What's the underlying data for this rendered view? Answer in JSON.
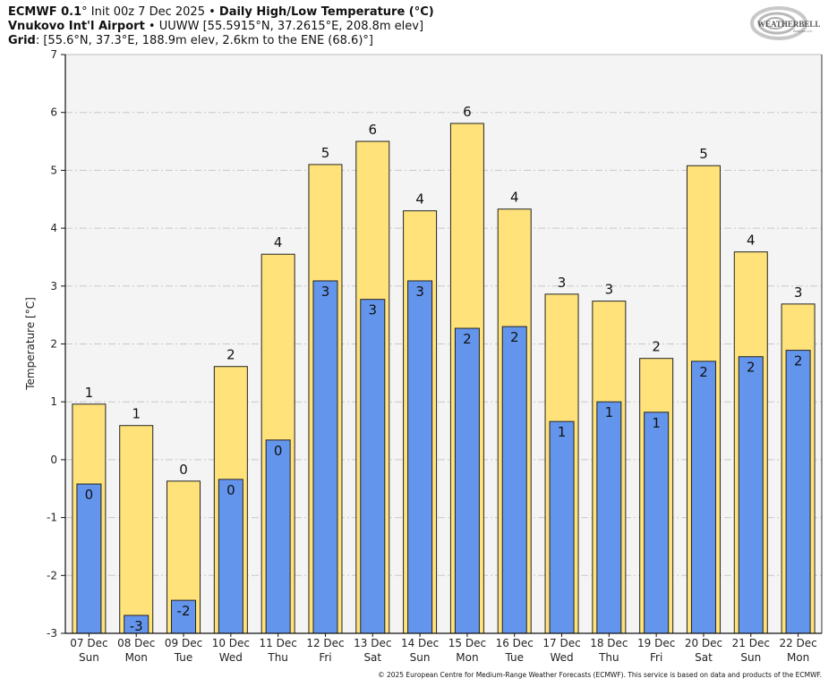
{
  "header": {
    "line1_bold_a": "ECMWF 0.1",
    "line1_deg": "°",
    "line1_text": " Init 00z 7 Dec 2025 • ",
    "line1_bold_b": "Daily High/Low Temperature (°C)",
    "line2_bold": "Vnukovo Int'l Airport",
    "line2_text": " • UUWW [55.5915°N, 37.2615°E, 208.8m elev]",
    "line3_bold": "Grid",
    "line3_text": ": [55.6°N, 37.3°E, 188.9m elev, 2.6km to the ENE (68.6)°]"
  },
  "logo": {
    "text": "WEATHERBELL",
    "subtext": "Analytics LLC",
    "icon": "swirl-logo-icon"
  },
  "footer": "© 2025 European Centre for Medium-Range Weather Forecasts (ECMWF). This service is based on data and products of the ECMWF.",
  "colors": {
    "high": "#ffe37a",
    "low": "#6495ed",
    "plot_bg": "#f4f4f4",
    "grid": "#c8c8c8"
  },
  "chart_data": {
    "type": "bar",
    "title": "Daily High/Low Temperature (°C)",
    "xlabel": "",
    "ylabel": "Temperature [°C]",
    "ylim": [
      -3,
      7
    ],
    "yticks": [
      -3,
      -2,
      -1,
      0,
      1,
      2,
      3,
      4,
      5,
      6,
      7
    ],
    "grid": true,
    "categories": [
      "07 Dec",
      "08 Dec",
      "09 Dec",
      "10 Dec",
      "11 Dec",
      "12 Dec",
      "13 Dec",
      "14 Dec",
      "15 Dec",
      "16 Dec",
      "17 Dec",
      "18 Dec",
      "19 Dec",
      "20 Dec",
      "21 Dec",
      "22 Dec"
    ],
    "weekdays": [
      "Sun",
      "Mon",
      "Tue",
      "Wed",
      "Thu",
      "Fri",
      "Sat",
      "Sun",
      "Mon",
      "Tue",
      "Wed",
      "Thu",
      "Fri",
      "Sat",
      "Sun",
      "Mon"
    ],
    "series": [
      {
        "name": "High",
        "values": [
          0.96,
          0.59,
          -0.37,
          1.61,
          3.55,
          5.1,
          5.5,
          4.3,
          5.81,
          4.33,
          2.86,
          2.74,
          1.75,
          5.08,
          3.59,
          2.69
        ],
        "labels": [
          "1",
          "1",
          "0",
          "2",
          "4",
          "5",
          "6",
          "4",
          "6",
          "4",
          "3",
          "3",
          "2",
          "5",
          "4",
          "3"
        ]
      },
      {
        "name": "Low",
        "values": [
          -0.42,
          -2.69,
          -2.43,
          -0.34,
          0.34,
          3.09,
          2.77,
          3.09,
          2.27,
          2.3,
          0.66,
          1.0,
          0.82,
          1.7,
          1.78,
          1.89
        ],
        "labels": [
          "0",
          "-3",
          "-2",
          "0",
          "0",
          "3",
          "3",
          "3",
          "2",
          "2",
          "1",
          "1",
          "1",
          "2",
          "2",
          "2"
        ]
      }
    ]
  }
}
